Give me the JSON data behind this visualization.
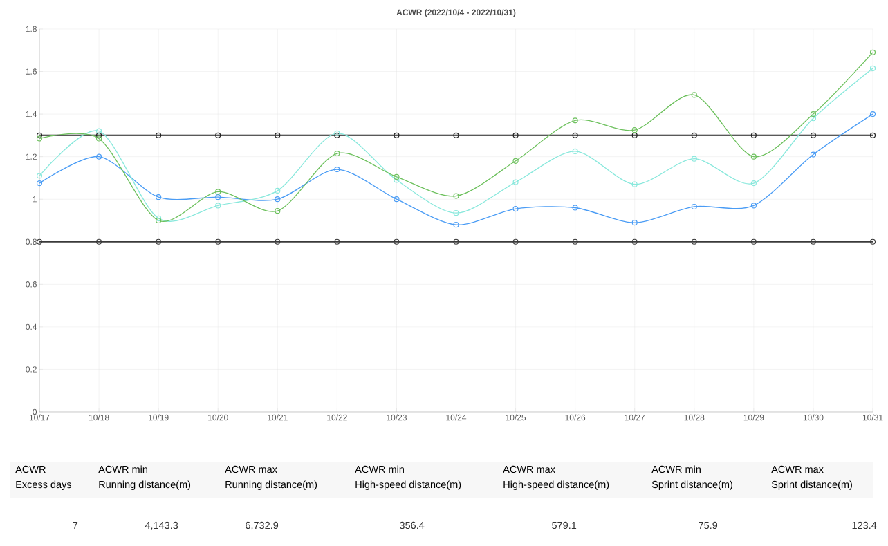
{
  "chart_data": [
    {
      "type": "line",
      "title": "ACWR (2022/10/4 - 2022/10/31)",
      "categories": [
        "10/17",
        "10/18",
        "10/19",
        "10/20",
        "10/21",
        "10/22",
        "10/23",
        "10/24",
        "10/25",
        "10/26",
        "10/27",
        "10/28",
        "10/29",
        "10/30",
        "10/31"
      ],
      "series": [
        {
          "color": "#222222",
          "values": [
            1.3,
            1.3,
            1.3,
            1.3,
            1.3,
            1.3,
            1.3,
            1.3,
            1.3,
            1.3,
            1.3,
            1.3,
            1.3,
            1.3,
            1.3
          ]
        },
        {
          "color": "#3a3a3a",
          "values": [
            0.8,
            0.8,
            0.8,
            0.8,
            0.8,
            0.8,
            0.8,
            0.8,
            0.8,
            0.8,
            0.8,
            0.8,
            0.8,
            0.8,
            0.8
          ]
        },
        {
          "color": "#4a9cf5",
          "values": [
            1.075,
            1.2,
            1.01,
            1.01,
            1.0,
            1.14,
            1.0,
            0.88,
            0.955,
            0.96,
            0.89,
            0.965,
            0.97,
            1.21,
            1.4
          ]
        },
        {
          "color": "#88e8dc",
          "values": [
            1.11,
            1.32,
            0.91,
            0.97,
            1.04,
            1.31,
            1.09,
            0.935,
            1.08,
            1.225,
            1.07,
            1.19,
            1.075,
            1.38,
            1.615
          ]
        },
        {
          "color": "#6cc05c",
          "values": [
            1.285,
            1.285,
            0.9,
            1.035,
            0.945,
            1.215,
            1.105,
            1.015,
            1.18,
            1.37,
            1.325,
            1.49,
            1.2,
            1.4,
            1.69
          ]
        }
      ],
      "ylim": [
        0,
        1.8
      ],
      "yticks": [
        0,
        0.2,
        0.4,
        0.6,
        0.8,
        1,
        1.2,
        1.4,
        1.6,
        1.8
      ],
      "grid": true,
      "marker": "circle"
    },
    {
      "type": "other",
      "annotations": [
        "ACWR",
        "ACWR min",
        "ACWR max",
        "ACWR min",
        "ACWR max",
        "ACWR min",
        "ACWR max",
        "Excess days",
        "Running distance(m)",
        "Running distance(m)",
        "High-speed distance(m)",
        "High-speed distance(m)",
        "Sprint distance(m)",
        "Sprint distance(m)",
        "7",
        "4,143.3",
        "6,732.9",
        "356.4",
        "579.1",
        "75.9",
        "123.4"
      ]
    }
  ]
}
